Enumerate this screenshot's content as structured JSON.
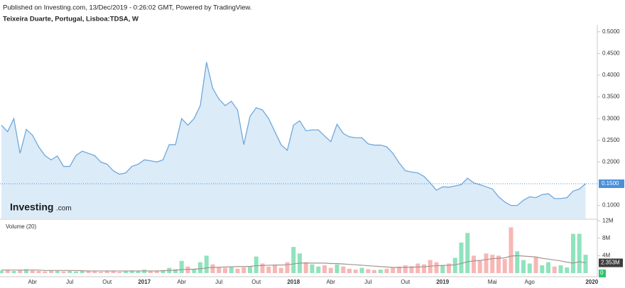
{
  "chart_data": {
    "type": "area",
    "subtitle": "Published on Investing.com, 13/Dec/2019 - 0:26:02 GMT, Powered by TradingView.",
    "title": "Teixeira Duarte, Portugal, Lisboa:TDSA, W",
    "categories": [
      null,
      null,
      null,
      null,
      null,
      "Abr",
      null,
      null,
      null,
      null,
      null,
      "Jul",
      null,
      null,
      null,
      null,
      null,
      "Out",
      null,
      null,
      null,
      null,
      null,
      "2017",
      null,
      null,
      null,
      null,
      null,
      "Abr",
      null,
      null,
      null,
      null,
      null,
      "Jul",
      null,
      null,
      null,
      null,
      null,
      "Out",
      null,
      null,
      null,
      null,
      null,
      "2018",
      null,
      null,
      null,
      null,
      null,
      "Abr",
      null,
      null,
      null,
      null,
      null,
      "Jul",
      null,
      null,
      null,
      null,
      null,
      "Out",
      null,
      null,
      null,
      null,
      null,
      "2019",
      null,
      null,
      null,
      null,
      null,
      null,
      null,
      "Mai",
      null,
      null,
      null,
      null,
      null,
      "Ago",
      null,
      null,
      null,
      null,
      null,
      null,
      null,
      null,
      null,
      "2020"
    ],
    "values": [
      0.285,
      0.27,
      0.3,
      0.22,
      0.275,
      0.262,
      0.235,
      0.215,
      0.205,
      0.214,
      0.19,
      0.19,
      0.215,
      0.225,
      0.22,
      0.215,
      0.2,
      0.195,
      0.18,
      0.172,
      0.175,
      0.19,
      0.195,
      0.205,
      0.203,
      0.2,
      0.205,
      0.24,
      0.24,
      0.3,
      0.285,
      0.3,
      0.33,
      0.43,
      0.37,
      0.345,
      0.33,
      0.34,
      0.32,
      0.24,
      0.305,
      0.325,
      0.32,
      0.3,
      0.27,
      0.24,
      0.227,
      0.285,
      0.295,
      0.272,
      0.274,
      0.274,
      0.26,
      0.247,
      0.287,
      0.266,
      0.258,
      0.256,
      0.256,
      0.242,
      0.239,
      0.239,
      0.235,
      0.22,
      0.198,
      0.18,
      0.177,
      0.175,
      0.167,
      0.152,
      0.135,
      0.143,
      0.142,
      0.145,
      0.148,
      0.163,
      0.152,
      0.148,
      0.143,
      0.138,
      0.12,
      0.108,
      0.1,
      0.1,
      0.112,
      0.12,
      0.118,
      0.125,
      0.127,
      0.116,
      0.116,
      0.118,
      0.133,
      0.138,
      0.15,
      null
    ],
    "last_label": "0.1500",
    "color": "#6fa8dc",
    "fill_color": "#dcebf8",
    "marker_color": "#4a90d9",
    "ylim": [
      0.07,
      0.516
    ],
    "yticks": [
      {
        "value": 0.1,
        "label": "0.1000"
      },
      {
        "value": 0.2,
        "label": "0.2000"
      },
      {
        "value": 0.25,
        "label": "0.2500"
      },
      {
        "value": 0.3,
        "label": "0.3000"
      },
      {
        "value": 0.35,
        "label": "0.3500"
      },
      {
        "value": 0.4,
        "label": "0.4000"
      },
      {
        "value": 0.45,
        "label": "0.4500"
      },
      {
        "value": 0.5,
        "label": "0.5000"
      }
    ],
    "volume": {
      "label": "Volume (20)",
      "up_color": "#8fe3bd",
      "down_color": "#f7b7b5",
      "last_color": "#2fc46e",
      "values": [
        600000,
        800000,
        500000,
        700000,
        900000,
        600000,
        500000,
        400000,
        600000,
        500000,
        400000,
        500000,
        400000,
        600000,
        500000,
        400000,
        300000,
        500000,
        400000,
        300000,
        500000,
        600000,
        400000,
        800000,
        500000,
        600000,
        700000,
        1200000,
        900000,
        2800000,
        1500000,
        1000000,
        2500000,
        4000000,
        2000000,
        1400000,
        1200000,
        1500000,
        1000000,
        1300000,
        1600000,
        3800000,
        2200000,
        1500000,
        1800000,
        1200000,
        2500000,
        6000000,
        4500000,
        2500000,
        2000000,
        1500000,
        1800000,
        1200000,
        2000000,
        1500000,
        1000000,
        800000,
        1200000,
        900000,
        700000,
        800000,
        1000000,
        1200000,
        1500000,
        1800000,
        1600000,
        2200000,
        2000000,
        3000000,
        2500000,
        1800000,
        2200000,
        3500000,
        7000000,
        9200000,
        4000000,
        3000000,
        4500000,
        4200000,
        4000000,
        3200000,
        10500000,
        5000000,
        3000000,
        2200000,
        3600000,
        1800000,
        2500000,
        1500000,
        1800000,
        1300000,
        9000000,
        9000000,
        4200000,
        0
      ],
      "ma": {
        "color": "#a3948f",
        "last_color": "#3d3d3d",
        "last_label": "2.353M",
        "values": [
          700000,
          700000,
          700000,
          700000,
          700000,
          700000,
          700000,
          600000,
          600000,
          600000,
          600000,
          600000,
          600000,
          550000,
          500000,
          500000,
          500000,
          500000,
          500000,
          500000,
          500000,
          500000,
          500000,
          500000,
          500000,
          500000,
          550000,
          600000,
          650000,
          800000,
          850000,
          900000,
          1000000,
          1200000,
          1300000,
          1350000,
          1400000,
          1450000,
          1500000,
          1500000,
          1550000,
          1700000,
          1750000,
          1800000,
          1850000,
          1850000,
          1900000,
          2100000,
          2300000,
          2300000,
          2300000,
          2300000,
          2300000,
          2200000,
          2200000,
          2100000,
          2000000,
          1900000,
          1800000,
          1700000,
          1600000,
          1500000,
          1400000,
          1300000,
          1300000,
          1300000,
          1350000,
          1400000,
          1450000,
          1600000,
          1700000,
          1750000,
          1800000,
          1900000,
          2200000,
          2600000,
          2800000,
          2900000,
          3100000,
          3300000,
          3400000,
          3500000,
          3900000,
          4000000,
          3900000,
          3800000,
          3700000,
          3400000,
          3200000,
          3000000,
          2800000,
          2500000,
          2300000,
          2600000,
          2353000,
          null
        ]
      },
      "ylim": [
        0,
        12200000
      ],
      "yticks": [
        {
          "value": 4000000,
          "label": "4M"
        },
        {
          "value": 8000000,
          "label": "8M"
        },
        {
          "value": 12000000,
          "label": "12M"
        }
      ]
    },
    "watermark": {
      "brand": "Investing",
      "suffix": ".com"
    }
  }
}
